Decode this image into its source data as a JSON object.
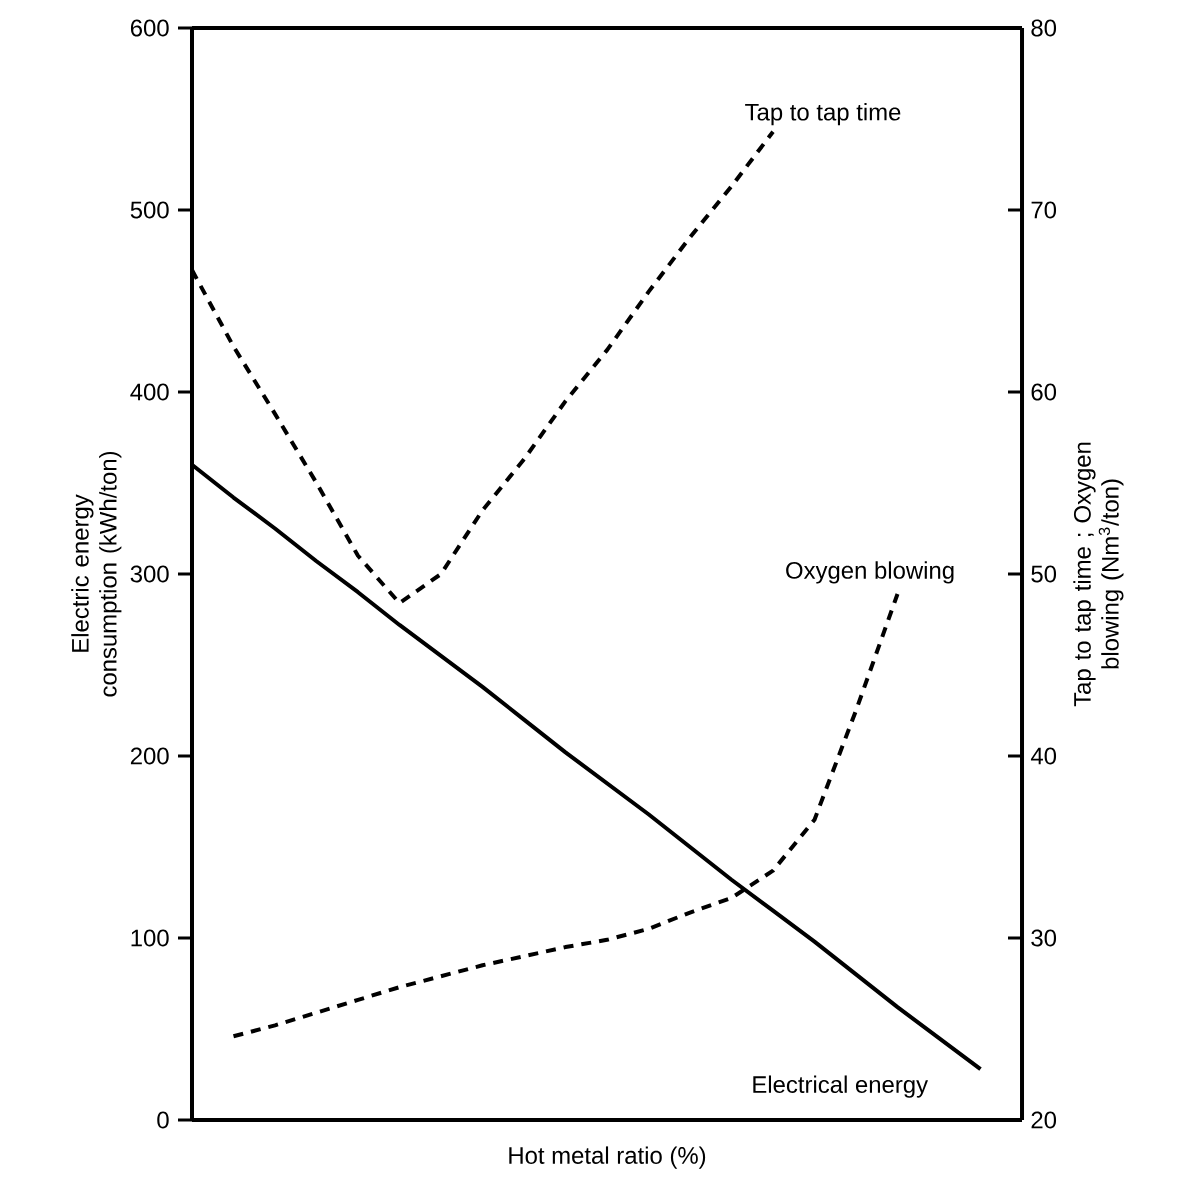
{
  "chart_data": {
    "type": "line",
    "xlabel": "Hot metal ratio (%)",
    "ylabel": "Electric energy consumption (kWh/ton)",
    "y2label": "Tap to tap time ; Oxygen blowing (Nm$^{3}$/ton)",
    "categories": [
      null,
      null,
      null,
      null,
      null,
      null,
      null,
      null,
      null,
      null,
      null,
      null,
      null,
      null,
      null,
      null,
      null,
      null,
      null,
      null,
      null
    ],
    "ylim": [
      0,
      600
    ],
    "yticks": [
      0,
      100,
      200,
      300,
      400,
      500,
      600
    ],
    "y2lim": [
      20,
      80
    ],
    "y2ticks": [
      20,
      30,
      40,
      50,
      60,
      70,
      80
    ],
    "tick_labels": "y",
    "grid": false,
    "legend": false,
    "marker": "none",
    "series": [
      {
        "name": "Electrical energy",
        "color": "#000000",
        "line_style": "solid",
        "values": [
          360,
          342,
          325,
          307,
          290,
          272,
          255,
          238,
          220,
          202,
          185,
          168,
          150,
          132,
          115,
          98,
          80,
          62,
          45,
          28,
          null
        ]
      },
      {
        "name": "Tap to tap time",
        "color": "#000000",
        "line_style": "dashed",
        "axis": "y2",
        "values": [
          66.7,
          62.5,
          58.8,
          55,
          51,
          48.4,
          50,
          53.5,
          56.3,
          59.5,
          62.3,
          65.5,
          68.5,
          71.3,
          74.3,
          null,
          null,
          null,
          null,
          null,
          null
        ]
      },
      {
        "name": "Oxygen blowing",
        "color": "#000000",
        "line_style": "dashed",
        "axis": "y2",
        "values": [
          null,
          24.6,
          25.2,
          25.9,
          26.6,
          27.3,
          27.9,
          28.5,
          29.0,
          29.5,
          29.9,
          30.5,
          31.4,
          32.2,
          33.7,
          36.5,
          42.5,
          48.9,
          null,
          null,
          null
        ]
      }
    ]
  }
}
